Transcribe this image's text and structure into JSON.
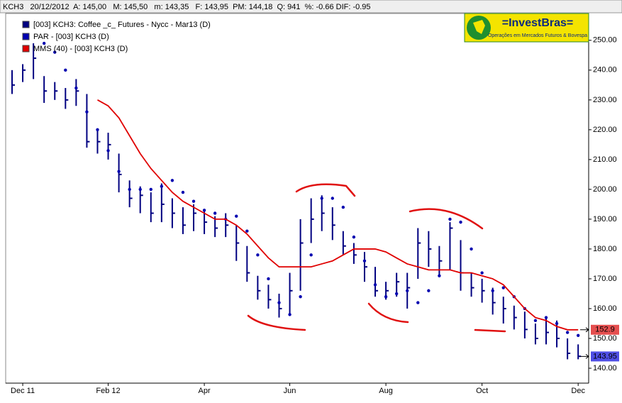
{
  "chart_data": {
    "type": "ohlc",
    "header": "KCH3   20/12/2012  A: 145,00   M: 145,50   m: 143,35   F: 143,95  PM: 144,18  Q: 941  %: -0.66 DIF: -0.95",
    "logo_title": "=InvestBras=",
    "logo_subtitle": "Operações em Mercados Futuros & Bovespa",
    "categories": [
      null,
      "Dec 11",
      null,
      null,
      null,
      null,
      null,
      null,
      null,
      "Feb 12",
      null,
      null,
      null,
      null,
      null,
      null,
      null,
      null,
      "Apr",
      null,
      null,
      null,
      null,
      null,
      null,
      null,
      "Jun",
      null,
      null,
      null,
      null,
      null,
      null,
      null,
      null,
      "Aug",
      null,
      null,
      null,
      null,
      null,
      null,
      null,
      null,
      "Oct",
      null,
      null,
      null,
      null,
      null,
      null,
      null,
      null,
      "Dec"
    ],
    "series": [
      {
        "name": "[003] KCH3: Coffee _c_ Futures - Nycc - Mar13     (D)",
        "color": "#000080",
        "values": [
          235,
          240,
          244,
          233,
          233,
          230,
          233,
          216,
          216,
          215,
          205,
          197,
          198,
          192,
          195,
          192,
          188,
          192,
          189,
          187,
          188,
          182,
          172,
          166,
          163,
          160,
          166,
          182,
          190,
          192,
          188,
          181,
          178,
          174,
          166,
          166,
          169,
          167,
          182,
          180,
          176,
          187,
          172,
          167,
          166,
          162,
          160,
          157,
          153,
          150,
          152,
          150,
          145,
          144
        ],
        "high": [
          240,
          242,
          249,
          238,
          236,
          234,
          237,
          232,
          220,
          219,
          212,
          203,
          201,
          199,
          202,
          197,
          194,
          195,
          193,
          191,
          192,
          188,
          181,
          171,
          168,
          165,
          172,
          190,
          197,
          198,
          194,
          186,
          182,
          179,
          174,
          169,
          172,
          172,
          187,
          186,
          181,
          189,
          183,
          172,
          170,
          167,
          164,
          161,
          159,
          155,
          157,
          156,
          150,
          148
        ],
        "low": [
          232,
          236,
          237,
          229,
          230,
          227,
          228,
          214,
          212,
          210,
          199,
          194,
          192,
          189,
          189,
          187,
          185,
          186,
          185,
          184,
          184,
          176,
          169,
          163,
          160,
          157,
          158,
          166,
          182,
          186,
          183,
          178,
          175,
          169,
          164,
          163,
          164,
          160,
          170,
          174,
          171,
          173,
          166,
          164,
          162,
          158,
          155,
          153,
          150,
          148,
          148,
          147,
          143,
          143
        ]
      },
      {
        "name": "PAR   - [003] KCH3 (D)",
        "color": "#0000b0",
        "values": [
          null,
          null,
          null,
          249,
          246,
          240,
          234,
          226,
          220,
          213,
          206,
          200,
          200,
          200,
          201,
          203,
          199,
          196,
          193,
          192,
          190,
          191,
          186,
          178,
          170,
          162,
          158,
          164,
          178,
          197,
          197,
          194,
          184,
          176,
          168,
          164,
          165,
          166,
          162,
          166,
          171,
          190,
          189,
          180,
          172,
          166,
          167,
          164,
          160,
          156,
          157,
          155,
          152,
          151
        ]
      },
      {
        "name": "MMS (40) - [003] KCH3 (D)",
        "color": "#e00000",
        "values": [
          null,
          null,
          null,
          null,
          null,
          null,
          null,
          null,
          230,
          228,
          224,
          218,
          212,
          207,
          203,
          199,
          196,
          194,
          192,
          190,
          190,
          188,
          185,
          181,
          177,
          174,
          174,
          174,
          174,
          175,
          176,
          178,
          180,
          180,
          180,
          179,
          177,
          175,
          174,
          173,
          173,
          173,
          172,
          172,
          171,
          170,
          168,
          164,
          160,
          157,
          156,
          154,
          152.9,
          152.9
        ]
      }
    ],
    "last_labels": [
      {
        "value": 152.9,
        "label": "152.9",
        "color": "#e03030"
      },
      {
        "value": 143.95,
        "label": "143.95",
        "color": "#3030e0"
      }
    ],
    "ylim": [
      135,
      259
    ],
    "yticks": [
      {
        "value": 140,
        "label": "140.00"
      },
      {
        "value": 150,
        "label": "150.00"
      },
      {
        "value": 160,
        "label": "160.00"
      },
      {
        "value": 170,
        "label": "170.00"
      },
      {
        "value": 180,
        "label": "180.00"
      },
      {
        "value": 190,
        "label": "190.00"
      },
      {
        "value": 200,
        "label": "200.00"
      },
      {
        "value": 210,
        "label": "210.00"
      },
      {
        "value": 220,
        "label": "220.00"
      },
      {
        "value": 230,
        "label": "230.00"
      },
      {
        "value": 240,
        "label": "240.00"
      },
      {
        "value": 250,
        "label": "250.00"
      }
    ],
    "grid": false
  }
}
